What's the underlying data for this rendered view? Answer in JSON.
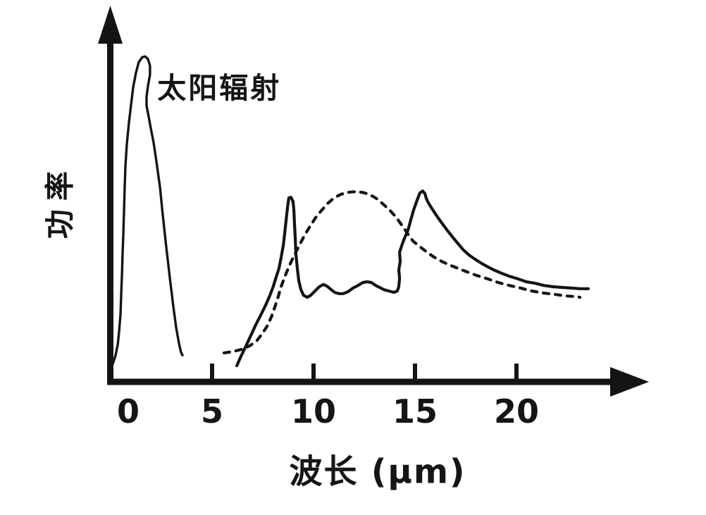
{
  "figure": {
    "background_color": "#ffffff",
    "ink_color": "#141414"
  },
  "chart_data": {
    "type": "line",
    "title": "",
    "xlabel": "波长 (μm)",
    "ylabel": "功率",
    "x_ticks": [
      0,
      5,
      10,
      15,
      20
    ],
    "x_tick_labels": [
      "0",
      "5",
      "10",
      "15",
      "20"
    ],
    "xlim": [
      -0.5,
      25
    ],
    "ylim": [
      0,
      1.15
    ],
    "y_ticks": [],
    "grid": false,
    "legend": "none",
    "annotations": [
      {
        "text": "太阳辐射",
        "x": 2.3,
        "y": 0.9
      }
    ],
    "series": [
      {
        "label": "太阳辐射",
        "style": "solid",
        "points": [
          [
            0.1,
            0.054
          ],
          [
            0.24,
            0.079
          ],
          [
            0.35,
            0.113
          ],
          [
            0.42,
            0.154
          ],
          [
            0.49,
            0.208
          ],
          [
            0.52,
            0.266
          ],
          [
            0.56,
            0.325
          ],
          [
            0.59,
            0.39
          ],
          [
            0.63,
            0.454
          ],
          [
            0.66,
            0.518
          ],
          [
            0.69,
            0.587
          ],
          [
            0.73,
            0.655
          ],
          [
            0.8,
            0.722
          ],
          [
            0.9,
            0.786
          ],
          [
            1.01,
            0.844
          ],
          [
            1.11,
            0.895
          ],
          [
            1.25,
            0.94
          ],
          [
            1.39,
            0.972
          ],
          [
            1.56,
            0.987
          ],
          [
            1.7,
            0.989
          ],
          [
            1.84,
            0.981
          ],
          [
            1.94,
            0.961
          ],
          [
            1.94,
            0.934
          ],
          [
            1.84,
            0.899
          ],
          [
            1.77,
            0.867
          ],
          [
            1.77,
            0.839
          ],
          [
            1.88,
            0.805
          ],
          [
            1.98,
            0.771
          ],
          [
            2.12,
            0.726
          ],
          [
            2.26,
            0.668
          ],
          [
            2.43,
            0.593
          ],
          [
            2.57,
            0.507
          ],
          [
            2.74,
            0.411
          ],
          [
            2.92,
            0.315
          ],
          [
            3.09,
            0.229
          ],
          [
            3.23,
            0.165
          ],
          [
            3.37,
            0.116
          ],
          [
            3.47,
            0.09
          ],
          [
            3.54,
            0.081
          ]
        ]
      },
      {
        "label": "",
        "style": "solid",
        "points": [
          [
            6.22,
            0.049
          ],
          [
            6.42,
            0.077
          ],
          [
            6.67,
            0.109
          ],
          [
            6.91,
            0.141
          ],
          [
            7.15,
            0.173
          ],
          [
            7.4,
            0.203
          ],
          [
            7.64,
            0.233
          ],
          [
            7.85,
            0.263
          ],
          [
            8.02,
            0.291
          ],
          [
            8.16,
            0.319
          ],
          [
            8.3,
            0.345
          ],
          [
            8.4,
            0.377
          ],
          [
            8.51,
            0.415
          ],
          [
            8.58,
            0.452
          ],
          [
            8.65,
            0.492
          ],
          [
            8.72,
            0.531
          ],
          [
            8.78,
            0.559
          ],
          [
            8.89,
            0.561
          ],
          [
            8.99,
            0.548
          ],
          [
            9.03,
            0.522
          ],
          [
            9.06,
            0.482
          ],
          [
            9.1,
            0.435
          ],
          [
            9.13,
            0.39
          ],
          [
            9.2,
            0.345
          ],
          [
            9.27,
            0.308
          ],
          [
            9.38,
            0.28
          ],
          [
            9.51,
            0.263
          ],
          [
            9.69,
            0.257
          ],
          [
            9.86,
            0.263
          ],
          [
            10.07,
            0.276
          ],
          [
            10.28,
            0.289
          ],
          [
            10.49,
            0.296
          ],
          [
            10.66,
            0.291
          ],
          [
            10.87,
            0.28
          ],
          [
            11.04,
            0.272
          ],
          [
            11.25,
            0.268
          ],
          [
            11.46,
            0.268
          ],
          [
            11.7,
            0.274
          ],
          [
            11.94,
            0.285
          ],
          [
            12.19,
            0.293
          ],
          [
            12.43,
            0.302
          ],
          [
            12.64,
            0.304
          ],
          [
            12.85,
            0.302
          ],
          [
            13.06,
            0.293
          ],
          [
            13.26,
            0.287
          ],
          [
            13.47,
            0.28
          ],
          [
            13.72,
            0.276
          ],
          [
            13.96,
            0.272
          ],
          [
            14.13,
            0.276
          ],
          [
            14.2,
            0.289
          ],
          [
            14.24,
            0.315
          ],
          [
            14.2,
            0.34
          ],
          [
            14.27,
            0.366
          ],
          [
            14.24,
            0.394
          ],
          [
            14.38,
            0.42
          ],
          [
            14.51,
            0.441
          ],
          [
            14.65,
            0.46
          ],
          [
            14.79,
            0.492
          ],
          [
            14.93,
            0.522
          ],
          [
            15.1,
            0.552
          ],
          [
            15.24,
            0.574
          ],
          [
            15.38,
            0.58
          ],
          [
            15.49,
            0.572
          ],
          [
            15.56,
            0.557
          ],
          [
            15.66,
            0.544
          ],
          [
            15.83,
            0.527
          ],
          [
            16.04,
            0.507
          ],
          [
            16.28,
            0.486
          ],
          [
            16.56,
            0.463
          ],
          [
            16.84,
            0.441
          ],
          [
            17.12,
            0.42
          ],
          [
            17.4,
            0.4
          ],
          [
            17.67,
            0.385
          ],
          [
            17.95,
            0.373
          ],
          [
            18.23,
            0.362
          ],
          [
            18.54,
            0.351
          ],
          [
            18.89,
            0.34
          ],
          [
            19.27,
            0.33
          ],
          [
            19.65,
            0.321
          ],
          [
            20.07,
            0.313
          ],
          [
            20.49,
            0.304
          ],
          [
            20.9,
            0.3
          ],
          [
            21.35,
            0.293
          ],
          [
            21.81,
            0.289
          ],
          [
            22.26,
            0.287
          ],
          [
            22.71,
            0.285
          ],
          [
            23.13,
            0.283
          ],
          [
            23.54,
            0.283
          ]
        ]
      },
      {
        "label": "",
        "style": "dotted",
        "points": [
          [
            5.59,
            0.088
          ],
          [
            6.04,
            0.092
          ],
          [
            6.46,
            0.099
          ],
          [
            6.84,
            0.109
          ],
          [
            7.19,
            0.124
          ],
          [
            7.47,
            0.146
          ],
          [
            7.71,
            0.169
          ],
          [
            7.92,
            0.197
          ],
          [
            8.09,
            0.227
          ],
          [
            8.26,
            0.259
          ],
          [
            8.4,
            0.289
          ],
          [
            8.58,
            0.319
          ],
          [
            8.75,
            0.345
          ],
          [
            8.92,
            0.368
          ],
          [
            9.13,
            0.394
          ],
          [
            9.34,
            0.42
          ],
          [
            9.58,
            0.448
          ],
          [
            9.83,
            0.473
          ],
          [
            10.1,
            0.499
          ],
          [
            10.38,
            0.52
          ],
          [
            10.69,
            0.542
          ],
          [
            11.01,
            0.559
          ],
          [
            11.35,
            0.57
          ],
          [
            11.7,
            0.576
          ],
          [
            12.05,
            0.578
          ],
          [
            12.4,
            0.576
          ],
          [
            12.74,
            0.57
          ],
          [
            13.06,
            0.559
          ],
          [
            13.4,
            0.542
          ],
          [
            13.75,
            0.522
          ],
          [
            14.06,
            0.501
          ],
          [
            14.34,
            0.477
          ],
          [
            14.62,
            0.452
          ],
          [
            14.9,
            0.428
          ],
          [
            15.24,
            0.411
          ],
          [
            15.59,
            0.394
          ],
          [
            15.94,
            0.379
          ],
          [
            16.32,
            0.366
          ],
          [
            16.7,
            0.355
          ],
          [
            17.12,
            0.345
          ],
          [
            17.57,
            0.334
          ],
          [
            18.06,
            0.323
          ],
          [
            18.58,
            0.313
          ],
          [
            19.1,
            0.302
          ],
          [
            19.65,
            0.293
          ],
          [
            20.21,
            0.285
          ],
          [
            20.76,
            0.276
          ],
          [
            21.32,
            0.27
          ],
          [
            21.88,
            0.266
          ],
          [
            22.43,
            0.261
          ],
          [
            22.95,
            0.259
          ],
          [
            23.13,
            0.257
          ]
        ]
      }
    ]
  }
}
